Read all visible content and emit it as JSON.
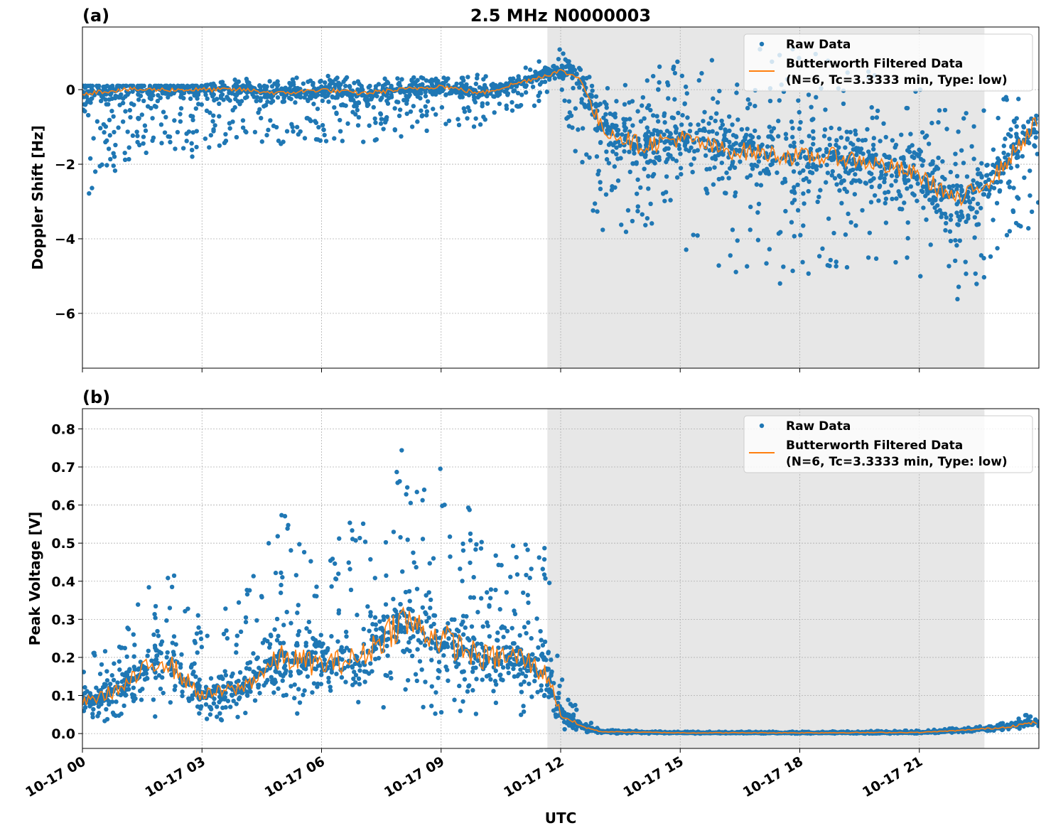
{
  "chart_data": [
    {
      "type": "scatter",
      "panel_label": "(a)",
      "title": "2.5 MHz N0000003",
      "xlabel": "",
      "ylabel": "Doppler Shift [Hz]",
      "xlim_hours": [
        0,
        24
      ],
      "ylim": [
        -7.47,
        1.68
      ],
      "yticks": [
        0,
        -2,
        -4,
        -6
      ],
      "ytick_labels": [
        "0",
        "−2",
        "−4",
        "−6"
      ],
      "grid": true,
      "legend_position": "top-right",
      "legend": [
        "Raw Data",
        "Butterworth Filtered Data",
        "(N=6, Tc=3.3333 min, Type: low)"
      ],
      "shaded_interval": [
        "10-17 11:40",
        "10-17 22:38"
      ],
      "series": [
        {
          "name": "Raw Data",
          "kind": "scatter-envelope",
          "color": "#1f77b4",
          "x": [
            0,
            1,
            2,
            3,
            4,
            5,
            6,
            7,
            8,
            9,
            10,
            11,
            12,
            13,
            14,
            15,
            16,
            17,
            18,
            19,
            20,
            21,
            22,
            23,
            24
          ],
          "lower": [
            -3,
            -2,
            -1.5,
            -2,
            -1.3,
            -1.5,
            -1.5,
            -1.5,
            -1.3,
            -1,
            -1,
            -0.5,
            -0.3,
            -4,
            -3.8,
            -4.5,
            -4.8,
            -5.2,
            -5.2,
            -4.8,
            -4.8,
            -5,
            -6,
            -4.5,
            -3.5
          ],
          "upper": [
            0.1,
            0.1,
            0.1,
            0.1,
            0.3,
            0.3,
            0.4,
            0.3,
            0.3,
            0.4,
            0.4,
            0.6,
            1.1,
            0.2,
            0.5,
            0.8,
            1.0,
            1.1,
            1.1,
            0.9,
            0.6,
            0.2,
            0,
            -0.2,
            0
          ]
        },
        {
          "name": "Butterworth Filtered Data",
          "kind": "line",
          "color": "#ff7f0e",
          "x": [
            0,
            1,
            2,
            3,
            4,
            5,
            6,
            7,
            8,
            9,
            10,
            11,
            12,
            12.5,
            13,
            14,
            15,
            16,
            17,
            18,
            19,
            20,
            21,
            22,
            23,
            24
          ],
          "y": [
            -0.1,
            0,
            0,
            0,
            0,
            -0.1,
            0,
            -0.1,
            0,
            0.1,
            -0.1,
            0.2,
            0.5,
            0.3,
            -1,
            -1.5,
            -1.3,
            -1.6,
            -1.7,
            -1.8,
            -1.8,
            -2,
            -2.3,
            -3,
            -2.2,
            -0.8
          ]
        }
      ]
    },
    {
      "type": "scatter",
      "panel_label": "(b)",
      "xlabel": "UTC",
      "ylabel": "Peak Voltage [V]",
      "xlim_hours": [
        0,
        24
      ],
      "ylim": [
        -0.039,
        0.853
      ],
      "yticks": [
        0,
        0.1,
        0.2,
        0.3,
        0.4,
        0.5,
        0.6,
        0.7,
        0.8
      ],
      "ytick_labels": [
        "0.0",
        "0.1",
        "0.2",
        "0.3",
        "0.4",
        "0.5",
        "0.6",
        "0.7",
        "0.8"
      ],
      "xticks_hours": [
        0,
        3,
        6,
        9,
        12,
        15,
        18,
        21
      ],
      "xtick_labels": [
        "10-17 00",
        "10-17 03",
        "10-17 06",
        "10-17 09",
        "10-17 12",
        "10-17 15",
        "10-17 18",
        "10-17 21"
      ],
      "grid": true,
      "legend_position": "top-right",
      "legend": [
        "Raw Data",
        "Butterworth Filtered Data",
        "(N=6, Tc=3.3333 min, Type: low)"
      ],
      "shaded_interval": [
        "10-17 11:40",
        "10-17 22:38"
      ],
      "series": [
        {
          "name": "Raw Data",
          "kind": "scatter-envelope",
          "color": "#1f77b4",
          "x": [
            0,
            1,
            2,
            3,
            4,
            5,
            6,
            7,
            8,
            9,
            10,
            11,
            11.7,
            12,
            12.5,
            13,
            15,
            18,
            21,
            22,
            23,
            24
          ],
          "lower": [
            0.03,
            0.03,
            0.03,
            0.03,
            0.04,
            0.05,
            0.05,
            0.05,
            0.05,
            0.05,
            0.05,
            0.04,
            0.03,
            0.01,
            0.003,
            0,
            0,
            0,
            0,
            0.003,
            0.008,
            0.015
          ],
          "upper": [
            0.2,
            0.25,
            0.5,
            0.3,
            0.35,
            0.6,
            0.45,
            0.6,
            0.75,
            0.7,
            0.55,
            0.5,
            0.5,
            0.15,
            0.05,
            0.01,
            0.005,
            0.005,
            0.008,
            0.015,
            0.025,
            0.06
          ]
        },
        {
          "name": "Butterworth Filtered Data",
          "kind": "line",
          "color": "#ff7f0e",
          "x": [
            0,
            1,
            2,
            3,
            4,
            5,
            6,
            7,
            8,
            9,
            10,
            11,
            11.7,
            12,
            12.5,
            13,
            15,
            18,
            21,
            22,
            23,
            24
          ],
          "y": [
            0.08,
            0.12,
            0.2,
            0.1,
            0.12,
            0.2,
            0.18,
            0.2,
            0.3,
            0.25,
            0.2,
            0.2,
            0.15,
            0.05,
            0.02,
            0.005,
            0.002,
            0.002,
            0.003,
            0.008,
            0.015,
            0.03
          ]
        }
      ]
    }
  ]
}
